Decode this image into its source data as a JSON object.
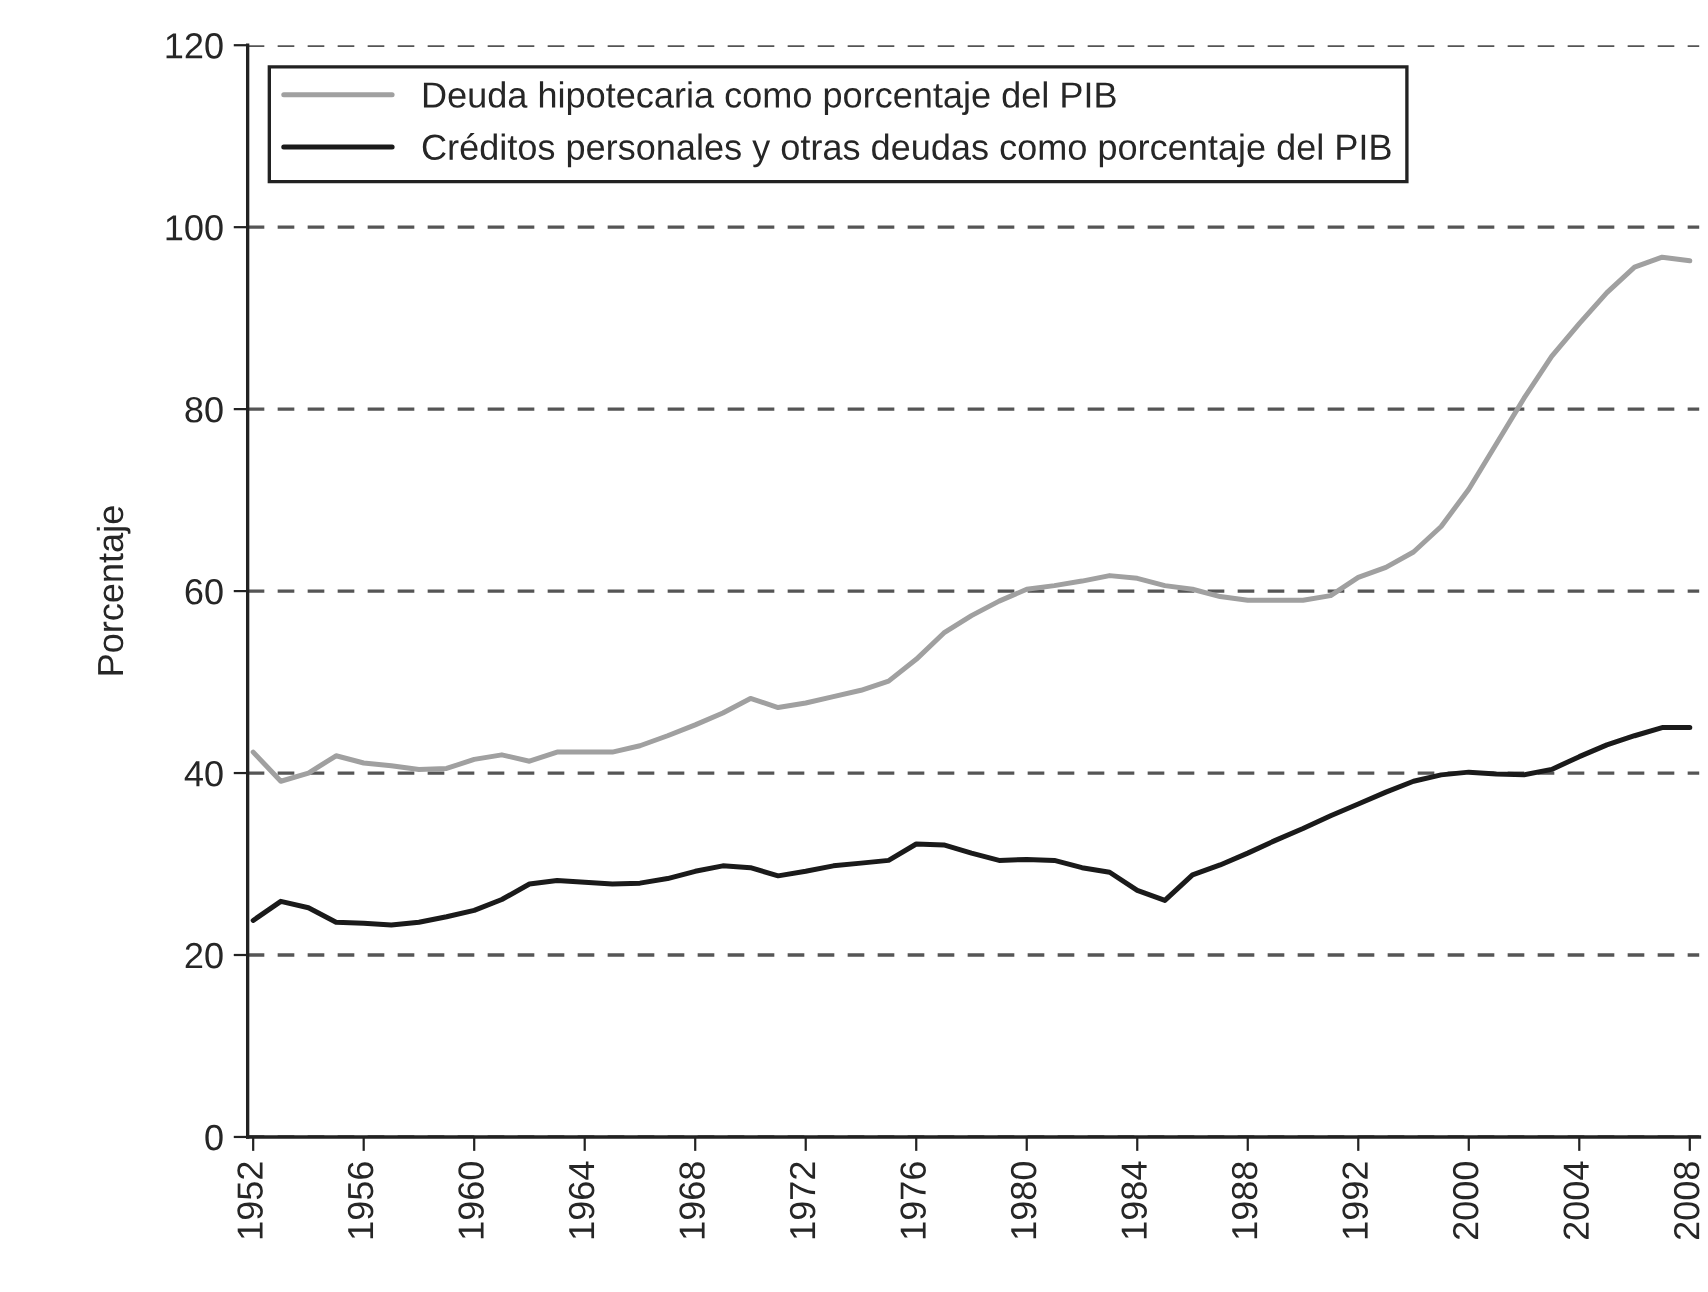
{
  "chart_data": {
    "type": "line",
    "ylabel": "Porcentaje",
    "categories": [
      "1952",
      null,
      null,
      null,
      "1956",
      null,
      null,
      null,
      "1960",
      null,
      null,
      null,
      "1964",
      null,
      null,
      null,
      "1968",
      null,
      null,
      null,
      "1972",
      null,
      null,
      null,
      "1976",
      null,
      null,
      null,
      "1980",
      null,
      null,
      null,
      "1984",
      null,
      null,
      null,
      "1988",
      null,
      null,
      null,
      "1992",
      null,
      null,
      null,
      "2000",
      null,
      null,
      null,
      "2004",
      null,
      null,
      null,
      "2008"
    ],
    "ylim": [
      0,
      120
    ],
    "yticks": [
      0,
      20,
      40,
      60,
      80,
      100,
      120
    ],
    "grid": "y",
    "legend": "top left",
    "line_style": "solid",
    "series": [
      {
        "name": "Deuda hipotecaria como porcentaje del PIB",
        "color": "#a0a0a0",
        "values": [
          42.3,
          39.1,
          40.0,
          41.9,
          41.1,
          40.8,
          40.4,
          40.5,
          41.5,
          42.0,
          41.3,
          42.3,
          42.3,
          42.3,
          43.0,
          44.1,
          45.3,
          46.6,
          48.2,
          47.2,
          47.7,
          48.4,
          49.1,
          50.1,
          52.5,
          55.4,
          57.3,
          58.9,
          60.2,
          60.6,
          61.1,
          61.7,
          61.4,
          60.6,
          60.2,
          59.4,
          59.0,
          59.0,
          59.0,
          59.5,
          61.5,
          62.6,
          64.3,
          67.1,
          71.2,
          76.2,
          81.2,
          85.8,
          89.4,
          92.8,
          95.6,
          96.7,
          96.3
        ]
      },
      {
        "name": "Créditos personales y otras deudas como porcentaje del PIB",
        "color": "#1a1a1a",
        "values": [
          23.8,
          25.9,
          25.2,
          23.6,
          23.5,
          23.3,
          23.6,
          24.2,
          24.9,
          26.1,
          27.8,
          28.2,
          28.0,
          27.8,
          27.9,
          28.4,
          29.2,
          29.8,
          29.6,
          28.7,
          29.2,
          29.8,
          30.1,
          30.4,
          32.2,
          32.1,
          31.2,
          30.4,
          30.5,
          30.4,
          29.6,
          29.1,
          27.1,
          26.0,
          28.8,
          29.9,
          31.2,
          32.6,
          33.9,
          35.3,
          36.6,
          37.9,
          39.1,
          39.8,
          40.1,
          39.9,
          39.8,
          40.4,
          41.8,
          43.1,
          44.1,
          45.0,
          45.0
        ]
      }
    ]
  }
}
